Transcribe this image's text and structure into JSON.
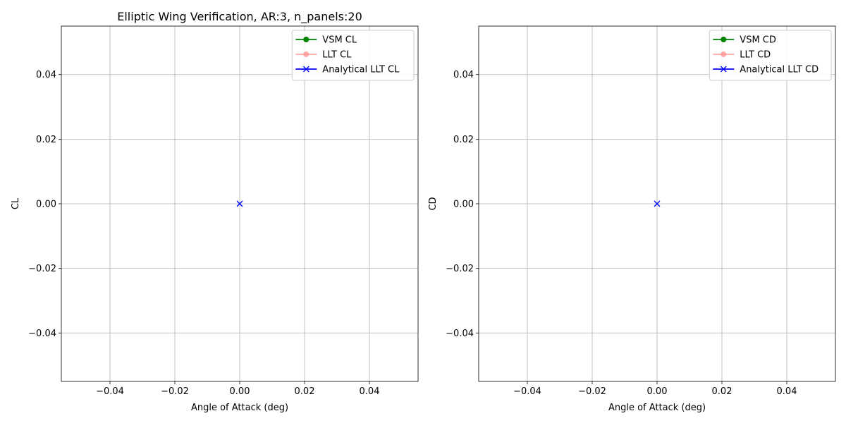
{
  "chart_data": [
    {
      "type": "line",
      "title": "Elliptic Wing Verification, AR:3, n_panels:20",
      "xlabel": "Angle of Attack (deg)",
      "ylabel": "CL",
      "xlim": [
        -0.055,
        0.055
      ],
      "ylim": [
        -0.055,
        0.055
      ],
      "xticks": [
        -0.04,
        -0.02,
        0.0,
        0.02,
        0.04
      ],
      "yticks": [
        -0.04,
        -0.02,
        0.0,
        0.02,
        0.04
      ],
      "xtick_labels": [
        "−0.04",
        "−0.02",
        "0.00",
        "0.02",
        "0.04"
      ],
      "ytick_labels": [
        "−0.04",
        "−0.02",
        "0.00",
        "0.02",
        "0.04"
      ],
      "grid": true,
      "legend_position": "top-right",
      "series": [
        {
          "name": "VSM CL",
          "color": "#008000",
          "marker": "circle",
          "x": [],
          "y": []
        },
        {
          "name": "LLT CL",
          "color": "#ff9999",
          "marker": "circle",
          "x": [],
          "y": []
        },
        {
          "name": "Analytical LLT CL",
          "color": "#0000ff",
          "marker": "x",
          "x": [
            0.0
          ],
          "y": [
            0.0
          ]
        }
      ]
    },
    {
      "type": "line",
      "title": "",
      "xlabel": "Angle of Attack (deg)",
      "ylabel": "CD",
      "xlim": [
        -0.055,
        0.055
      ],
      "ylim": [
        -0.055,
        0.055
      ],
      "xticks": [
        -0.04,
        -0.02,
        0.0,
        0.02,
        0.04
      ],
      "yticks": [
        -0.04,
        -0.02,
        0.0,
        0.02,
        0.04
      ],
      "xtick_labels": [
        "−0.04",
        "−0.02",
        "0.00",
        "0.02",
        "0.04"
      ],
      "ytick_labels": [
        "−0.04",
        "−0.02",
        "0.00",
        "0.02",
        "0.04"
      ],
      "grid": true,
      "legend_position": "top-right",
      "series": [
        {
          "name": "VSM CD",
          "color": "#008000",
          "marker": "circle",
          "x": [],
          "y": []
        },
        {
          "name": "LLT CD",
          "color": "#ff9999",
          "marker": "circle",
          "x": [],
          "y": []
        },
        {
          "name": "Analytical LLT CD",
          "color": "#0000ff",
          "marker": "x",
          "x": [
            0.0
          ],
          "y": [
            0.0
          ]
        }
      ]
    }
  ]
}
